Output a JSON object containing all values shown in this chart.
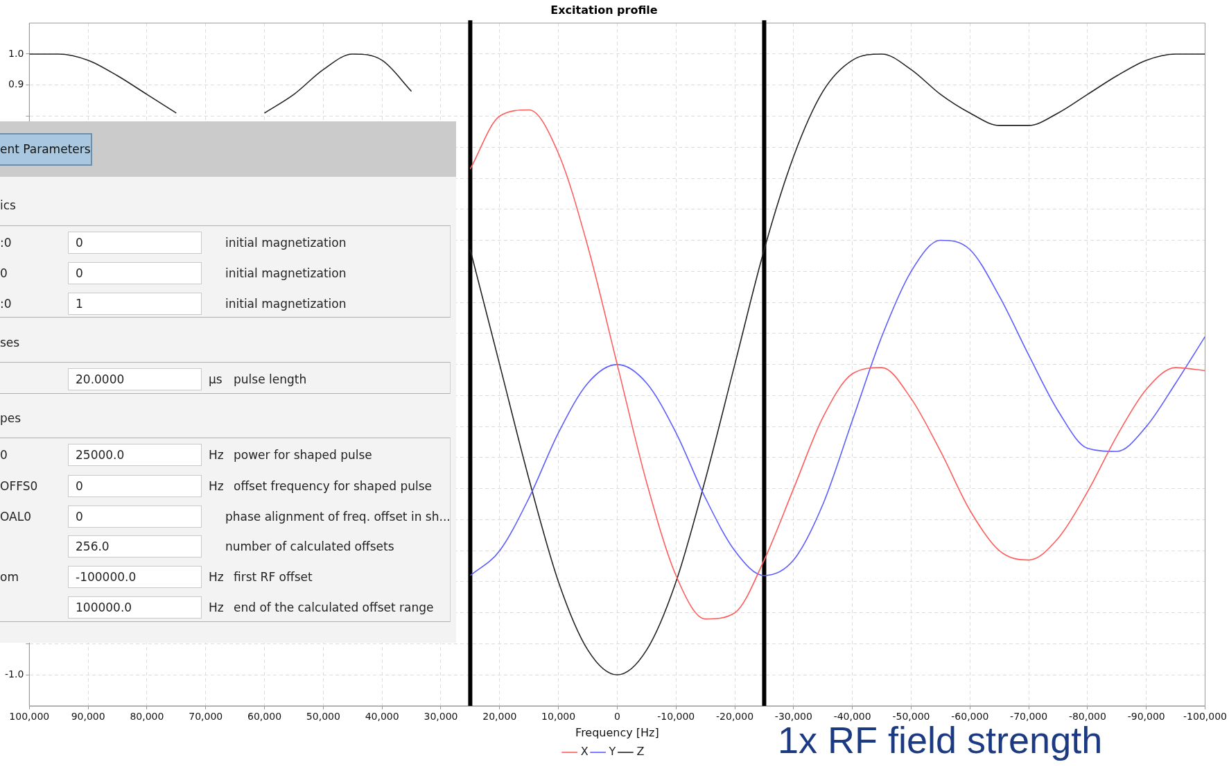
{
  "chart_data": {
    "type": "line",
    "title": "Excitation profile",
    "xlabel": "Frequency [Hz]",
    "x": [
      100000,
      95000,
      90000,
      85000,
      80000,
      75000,
      70000,
      65000,
      60000,
      55000,
      50000,
      45000,
      40000,
      35000,
      30000,
      25000,
      20000,
      15000,
      10000,
      5000,
      0,
      -5000,
      -10000,
      -15000,
      -20000,
      -25000,
      -30000,
      -35000,
      -40000,
      -45000,
      -50000,
      -55000,
      -60000,
      -65000,
      -70000,
      -75000,
      -80000,
      -85000,
      -90000,
      -95000,
      -100000
    ],
    "series": [
      {
        "name": "X",
        "color": "#ff5c5c",
        "values": [
          null,
          null,
          null,
          null,
          null,
          null,
          null,
          null,
          null,
          null,
          null,
          null,
          null,
          null,
          null,
          0.63,
          0.8,
          0.82,
          0.68,
          0.38,
          0.0,
          -0.38,
          -0.68,
          -0.82,
          -0.8,
          -0.63,
          -0.4,
          -0.17,
          -0.03,
          -0.01,
          -0.11,
          -0.28,
          -0.47,
          -0.6,
          -0.63,
          -0.56,
          -0.41,
          -0.23,
          -0.08,
          -0.01,
          -0.02
        ]
      },
      {
        "name": "Y",
        "color": "#5c5cff",
        "values": [
          null,
          null,
          null,
          null,
          null,
          null,
          null,
          null,
          null,
          null,
          null,
          null,
          null,
          null,
          null,
          -0.68,
          -0.6,
          -0.43,
          -0.22,
          -0.06,
          0.0,
          -0.06,
          -0.22,
          -0.43,
          -0.6,
          -0.68,
          -0.63,
          -0.45,
          -0.18,
          0.09,
          0.3,
          0.4,
          0.37,
          0.22,
          0.03,
          -0.15,
          -0.27,
          -0.28,
          -0.2,
          -0.06,
          0.09
        ]
      },
      {
        "name": "Z",
        "color": "#222222",
        "values": [
          1.0,
          1.0,
          0.98,
          0.93,
          0.87,
          0.81,
          null,
          null,
          0.81,
          0.87,
          0.95,
          1.0,
          0.98,
          0.88,
          null,
          0.37,
          0.0,
          -0.37,
          -0.7,
          -0.92,
          -1.0,
          -0.92,
          -0.7,
          -0.37,
          0.0,
          0.37,
          0.67,
          0.88,
          0.98,
          1.0,
          0.95,
          0.87,
          0.81,
          0.77,
          0.77,
          0.81,
          0.87,
          0.93,
          0.98,
          1.0,
          1.0
        ]
      }
    ],
    "xlim": [
      100000,
      -100000
    ],
    "xticks": [
      {
        "value": 100000,
        "label": "100,000"
      },
      {
        "value": 90000,
        "label": "90,000"
      },
      {
        "value": 80000,
        "label": "80,000"
      },
      {
        "value": 70000,
        "label": "70,000"
      },
      {
        "value": 60000,
        "label": "60,000"
      },
      {
        "value": 50000,
        "label": "50,000"
      },
      {
        "value": 40000,
        "label": "40,000"
      },
      {
        "value": 30000,
        "label": "30,000"
      },
      {
        "value": 20000,
        "label": "20,000"
      },
      {
        "value": 10000,
        "label": "10,000"
      },
      0,
      {
        "value": -10000,
        "label": "-10,000"
      },
      {
        "value": -20000,
        "label": "-20,000"
      },
      {
        "value": -30000,
        "label": "-30,000"
      },
      {
        "value": -40000,
        "label": "-40,000"
      },
      {
        "value": -50000,
        "label": "-50,000"
      },
      {
        "value": -60000,
        "label": "-60,000"
      },
      {
        "value": -70000,
        "label": "-70,000"
      },
      {
        "value": -80000,
        "label": "-80,000"
      },
      {
        "value": -90000,
        "label": "-90,000"
      },
      {
        "value": -100000,
        "label": "-100,000"
      }
    ],
    "ylim": [
      -1.1,
      1.1
    ],
    "yticks": [
      {
        "value": -1,
        "label": "-1.0"
      },
      {
        "value": -0.9,
        "label": null
      },
      {
        "value": -0.8,
        "label": null
      },
      {
        "value": -0.7,
        "label": null
      },
      {
        "value": -0.6,
        "label": null
      },
      {
        "value": -0.5,
        "label": null
      },
      {
        "value": -0.4,
        "label": null
      },
      {
        "value": -0.3,
        "label": null
      },
      {
        "value": -0.2,
        "label": null
      },
      {
        "value": -0.1,
        "label": null
      },
      {
        "value": 0,
        "label": null
      },
      {
        "value": 0.1,
        "label": null
      },
      {
        "value": 0.2,
        "label": null
      },
      {
        "value": 0.3,
        "label": null
      },
      {
        "value": 0.4,
        "label": null
      },
      {
        "value": 0.5,
        "label": null
      },
      {
        "value": 0.6,
        "label": null
      },
      {
        "value": 0.7,
        "label": null
      },
      {
        "value": 0.8,
        "label": null
      },
      {
        "value": 0.9,
        "label": "0.9"
      },
      {
        "value": 1,
        "label": "1.0"
      }
    ],
    "ref_lines": [
      {
        "axis": "x",
        "value": 25000,
        "color": "#000000"
      },
      {
        "axis": "x",
        "value": -25000,
        "color": "#000000"
      }
    ],
    "grid": true,
    "legend": "bottom",
    "marker": "none",
    "line_style": "solid",
    "annotations": [
      "1x RF field strength",
      "ent Parameters",
      "ics",
      ":0",
      "0",
      "initial magnetization",
      "0",
      "0",
      "initial magnetization",
      ":0",
      "1",
      "initial magnetization",
      "ses",
      "20.0000",
      "µs",
      "pulse length",
      "pes",
      "0",
      "25000.0",
      "Hz",
      "power for shaped pulse",
      "OFFS0",
      "0",
      "Hz",
      "offset frequency for shaped pulse",
      "OAL0",
      "0",
      "phase alignment of freq. offset in sh...",
      "256.0",
      "number of calculated offsets",
      "om",
      "-100000.0",
      "Hz",
      "first RF offset",
      "100000.0",
      "Hz",
      "end of the calculated offset range"
    ]
  }
}
